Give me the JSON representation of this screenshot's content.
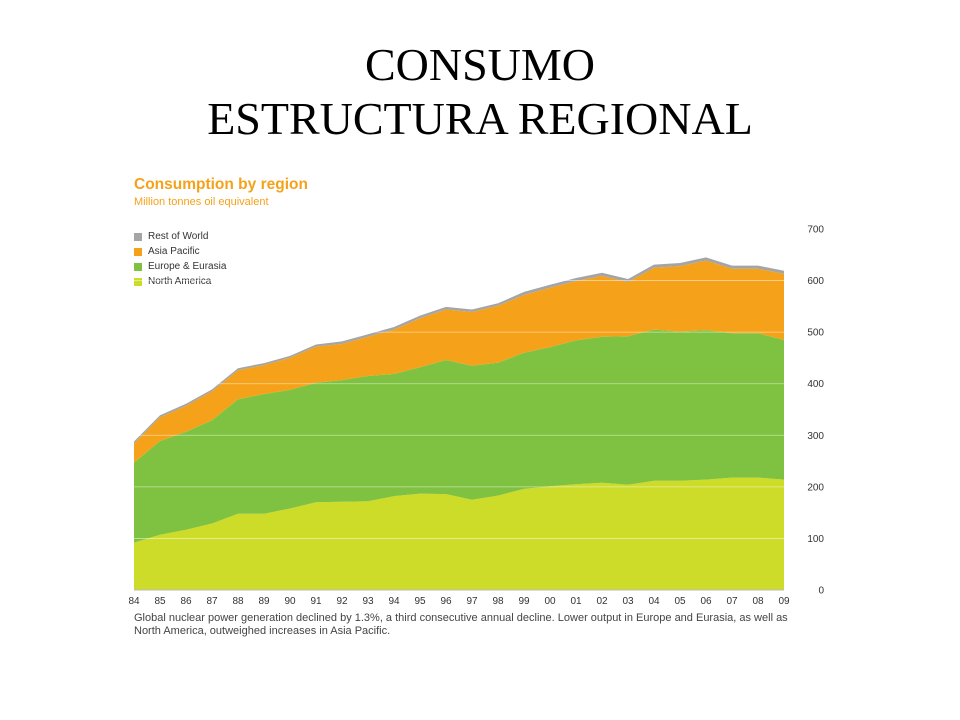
{
  "slide": {
    "title_line1": "CONSUMO",
    "title_line2": "ESTRUCTURA REGIONAL"
  },
  "caption": "Global nuclear power generation declined by 1.3%, a third consecutive annual decline. Lower output in Europe and Eurasia, as well as North America, outweighed increases in Asia Pacific.",
  "chart_data": {
    "type": "area",
    "stacked": true,
    "title": "Consumption by region",
    "subtitle": "Million tonnes oil equivalent",
    "x": [
      "84",
      "85",
      "86",
      "87",
      "88",
      "89",
      "90",
      "91",
      "92",
      "93",
      "94",
      "95",
      "96",
      "97",
      "98",
      "99",
      "00",
      "01",
      "02",
      "03",
      "04",
      "05",
      "06",
      "07",
      "08",
      "09"
    ],
    "ylim": [
      0,
      700
    ],
    "yticks": [
      0,
      100,
      200,
      300,
      400,
      500,
      600,
      700
    ],
    "y_axis_side": "right",
    "grid": true,
    "legend_position": "top-left",
    "series": [
      {
        "name": "North America",
        "color": "#cddb29",
        "values": [
          92,
          107,
          117,
          129,
          148,
          148,
          158,
          170,
          171,
          172,
          182,
          187,
          186,
          175,
          183,
          196,
          201,
          205,
          208,
          204,
          212,
          212,
          214,
          218,
          218,
          214
        ]
      },
      {
        "name": "Europe & Eurasia",
        "color": "#7fc241",
        "values": [
          155,
          182,
          190,
          200,
          222,
          232,
          230,
          232,
          236,
          243,
          237,
          245,
          260,
          260,
          258,
          264,
          270,
          279,
          283,
          288,
          293,
          289,
          290,
          280,
          280,
          271
        ]
      },
      {
        "name": "Asia Pacific",
        "color": "#f5a21a",
        "values": [
          37,
          46,
          50,
          56,
          56,
          56,
          62,
          70,
          70,
          76,
          86,
          95,
          98,
          104,
          110,
          112,
          115,
          115,
          118,
          105,
          120,
          127,
          135,
          125,
          125,
          128
        ]
      },
      {
        "name": "Rest of World",
        "color": "#a5a5a5",
        "values": [
          4,
          4,
          4,
          4,
          4,
          4,
          4,
          4,
          5,
          5,
          5,
          5,
          5,
          5,
          5,
          6,
          6,
          6,
          6,
          6,
          6,
          6,
          6,
          6,
          6,
          6
        ]
      }
    ],
    "legend_order": [
      "Rest of World",
      "Asia Pacific",
      "Europe & Eurasia",
      "North America"
    ]
  }
}
